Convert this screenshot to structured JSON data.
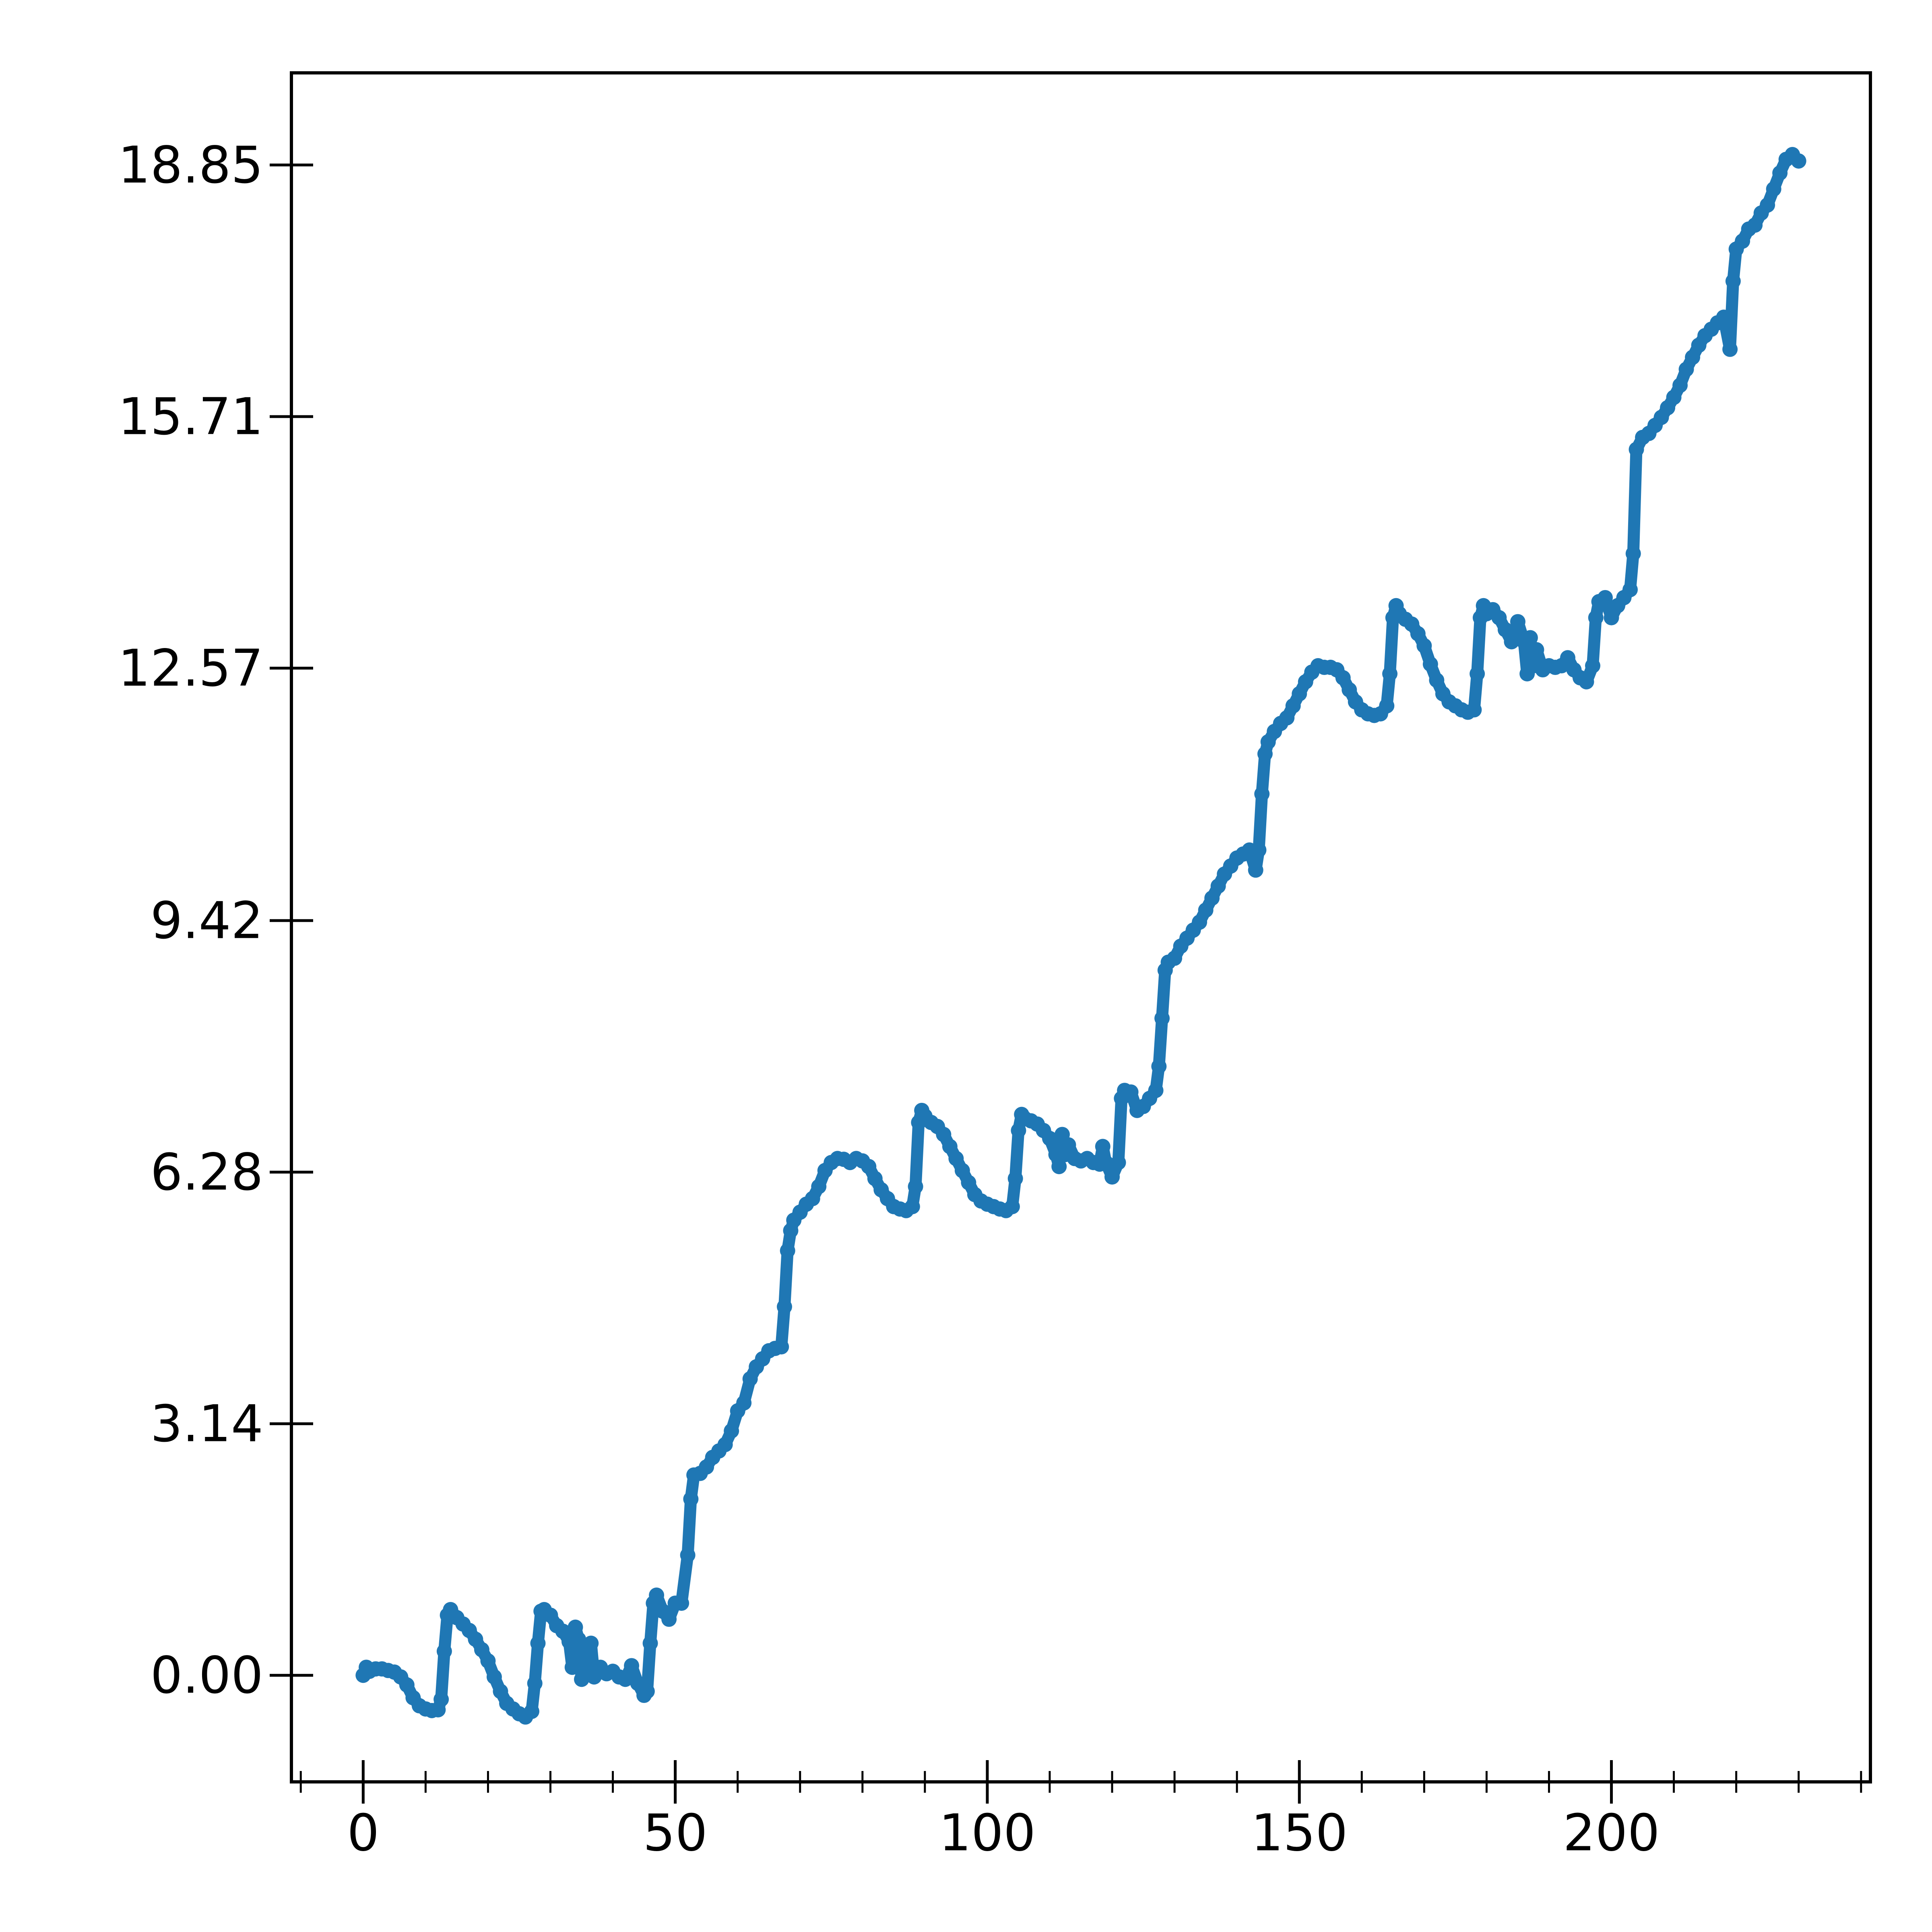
{
  "chart_data": {
    "type": "scatter",
    "title": "",
    "xlabel": "",
    "ylabel": "",
    "xlim": [
      -11.5,
      241.5
    ],
    "ylim": [
      -1.33,
      20.0
    ],
    "x_ticks": [
      0,
      50,
      100,
      150,
      200
    ],
    "x_tick_labels": [
      "0",
      "50",
      "100",
      "150",
      "200"
    ],
    "y_ticks": [
      0.0,
      3.14,
      6.28,
      9.42,
      12.57,
      15.71,
      18.85
    ],
    "y_tick_labels": [
      "0.00",
      "3.14",
      "6.28",
      "9.42",
      "12.57",
      "15.71",
      "18.85"
    ],
    "grid": false,
    "series": [
      {
        "color": "#1f77b4",
        "points": [
          [
            0,
            0.0
          ],
          [
            0.5,
            0.1
          ],
          [
            1,
            0.05
          ],
          [
            2,
            0.08
          ],
          [
            3,
            0.08
          ],
          [
            4,
            0.06
          ],
          [
            5,
            0.04
          ],
          [
            6,
            -0.02
          ],
          [
            7,
            -0.12
          ],
          [
            8,
            -0.28
          ],
          [
            9,
            -0.38
          ],
          [
            10,
            -0.42
          ],
          [
            11,
            -0.44
          ],
          [
            12,
            -0.43
          ],
          [
            12.5,
            -0.3
          ],
          [
            13,
            0.3
          ],
          [
            13.5,
            0.75
          ],
          [
            14,
            0.82
          ],
          [
            15,
            0.72
          ],
          [
            16,
            0.64
          ],
          [
            17,
            0.56
          ],
          [
            18,
            0.45
          ],
          [
            19,
            0.32
          ],
          [
            20,
            0.18
          ],
          [
            21,
            -0.02
          ],
          [
            22,
            -0.2
          ],
          [
            23,
            -0.35
          ],
          [
            24,
            -0.42
          ],
          [
            25,
            -0.48
          ],
          [
            26,
            -0.52
          ],
          [
            27,
            -0.45
          ],
          [
            27.5,
            -0.1
          ],
          [
            28,
            0.4
          ],
          [
            28.5,
            0.8
          ],
          [
            29,
            0.82
          ],
          [
            30,
            0.75
          ],
          [
            31,
            0.62
          ],
          [
            32,
            0.55
          ],
          [
            33,
            0.42
          ],
          [
            33.5,
            0.1
          ],
          [
            34,
            0.6
          ],
          [
            34.5,
            0.45
          ],
          [
            35,
            -0.05
          ],
          [
            35.5,
            0.25
          ],
          [
            36,
            0.05
          ],
          [
            36.5,
            0.4
          ],
          [
            37,
            -0.02
          ],
          [
            38,
            0.1
          ],
          [
            39,
            0.02
          ],
          [
            40,
            0.05
          ],
          [
            41,
            -0.02
          ],
          [
            42,
            -0.05
          ],
          [
            43,
            0.12
          ],
          [
            44,
            -0.1
          ],
          [
            45,
            -0.25
          ],
          [
            45.5,
            -0.2
          ],
          [
            46,
            0.4
          ],
          [
            46.5,
            0.9
          ],
          [
            47,
            1.0
          ],
          [
            48,
            0.8
          ],
          [
            49,
            0.7
          ],
          [
            50,
            0.9
          ],
          [
            51,
            0.9
          ],
          [
            52,
            1.5
          ],
          [
            52.5,
            2.2
          ],
          [
            53,
            2.5
          ],
          [
            54,
            2.52
          ],
          [
            55,
            2.6
          ],
          [
            56,
            2.72
          ],
          [
            57,
            2.8
          ],
          [
            58,
            2.88
          ],
          [
            59,
            3.05
          ],
          [
            60,
            3.3
          ],
          [
            61,
            3.4
          ],
          [
            62,
            3.7
          ],
          [
            63,
            3.85
          ],
          [
            64,
            3.95
          ],
          [
            65,
            4.05
          ],
          [
            66,
            4.08
          ],
          [
            67,
            4.1
          ],
          [
            67.5,
            4.6
          ],
          [
            68,
            5.3
          ],
          [
            68.5,
            5.55
          ],
          [
            69,
            5.68
          ],
          [
            70,
            5.78
          ],
          [
            71,
            5.88
          ],
          [
            72,
            5.95
          ],
          [
            73,
            6.1
          ],
          [
            74,
            6.3
          ],
          [
            75,
            6.4
          ],
          [
            76,
            6.45
          ],
          [
            77,
            6.44
          ],
          [
            78,
            6.4
          ],
          [
            79,
            6.45
          ],
          [
            80,
            6.42
          ],
          [
            81,
            6.35
          ],
          [
            82,
            6.2
          ],
          [
            83,
            6.06
          ],
          [
            84,
            5.95
          ],
          [
            85,
            5.85
          ],
          [
            86,
            5.82
          ],
          [
            87,
            5.8
          ],
          [
            88,
            5.85
          ],
          [
            88.5,
            6.1
          ],
          [
            89,
            6.9
          ],
          [
            89.5,
            7.05
          ],
          [
            90,
            6.98
          ],
          [
            91,
            6.9
          ],
          [
            92,
            6.85
          ],
          [
            93,
            6.75
          ],
          [
            94,
            6.6
          ],
          [
            95,
            6.45
          ],
          [
            96,
            6.3
          ],
          [
            97,
            6.15
          ],
          [
            98,
            6.0
          ],
          [
            99,
            5.92
          ],
          [
            100,
            5.88
          ],
          [
            101,
            5.85
          ],
          [
            102,
            5.82
          ],
          [
            103,
            5.8
          ],
          [
            104,
            5.85
          ],
          [
            104.5,
            6.2
          ],
          [
            105,
            6.8
          ],
          [
            105.5,
            7.0
          ],
          [
            106,
            6.95
          ],
          [
            107,
            6.92
          ],
          [
            108,
            6.88
          ],
          [
            109,
            6.8
          ],
          [
            110,
            6.7
          ],
          [
            111,
            6.5
          ],
          [
            111.5,
            6.35
          ],
          [
            112,
            6.75
          ],
          [
            112.5,
            6.5
          ],
          [
            113,
            6.62
          ],
          [
            114,
            6.45
          ],
          [
            115,
            6.42
          ],
          [
            116,
            6.45
          ],
          [
            117,
            6.4
          ],
          [
            118,
            6.38
          ],
          [
            118.5,
            6.6
          ],
          [
            119,
            6.4
          ],
          [
            120,
            6.22
          ],
          [
            121,
            6.4
          ],
          [
            121.5,
            7.2
          ],
          [
            122,
            7.3
          ],
          [
            123,
            7.28
          ],
          [
            124,
            7.05
          ],
          [
            125,
            7.1
          ],
          [
            126,
            7.2
          ],
          [
            127,
            7.3
          ],
          [
            127.5,
            7.6
          ],
          [
            128,
            8.2
          ],
          [
            128.5,
            8.8
          ],
          [
            129,
            8.9
          ],
          [
            130,
            8.95
          ],
          [
            131,
            9.1
          ],
          [
            132,
            9.2
          ],
          [
            133,
            9.3
          ],
          [
            134,
            9.4
          ],
          [
            135,
            9.55
          ],
          [
            136,
            9.7
          ],
          [
            137,
            9.85
          ],
          [
            138,
            10.0
          ],
          [
            139,
            10.1
          ],
          [
            140,
            10.2
          ],
          [
            141,
            10.25
          ],
          [
            142,
            10.3
          ],
          [
            143,
            10.05
          ],
          [
            143.5,
            10.3
          ],
          [
            144,
            11.0
          ],
          [
            144.5,
            11.5
          ],
          [
            145,
            11.65
          ],
          [
            146,
            11.78
          ],
          [
            147,
            11.88
          ],
          [
            148,
            11.95
          ],
          [
            149,
            12.1
          ],
          [
            150,
            12.25
          ],
          [
            151,
            12.4
          ],
          [
            152,
            12.52
          ],
          [
            153,
            12.6
          ],
          [
            154,
            12.58
          ],
          [
            155,
            12.58
          ],
          [
            156,
            12.55
          ],
          [
            157,
            12.45
          ],
          [
            158,
            12.3
          ],
          [
            159,
            12.15
          ],
          [
            160,
            12.05
          ],
          [
            161,
            12.0
          ],
          [
            162,
            11.98
          ],
          [
            163,
            12.0
          ],
          [
            164,
            12.1
          ],
          [
            164.5,
            12.5
          ],
          [
            165,
            13.2
          ],
          [
            165.5,
            13.35
          ],
          [
            166,
            13.25
          ],
          [
            167,
            13.18
          ],
          [
            168,
            13.12
          ],
          [
            169,
            13.0
          ],
          [
            170,
            12.85
          ],
          [
            171,
            12.62
          ],
          [
            172,
            12.42
          ],
          [
            173,
            12.25
          ],
          [
            174,
            12.15
          ],
          [
            175,
            12.1
          ],
          [
            176,
            12.05
          ],
          [
            177,
            12.02
          ],
          [
            178,
            12.05
          ],
          [
            178.5,
            12.5
          ],
          [
            179,
            13.2
          ],
          [
            179.5,
            13.35
          ],
          [
            180,
            13.25
          ],
          [
            181,
            13.3
          ],
          [
            182,
            13.2
          ],
          [
            183,
            13.05
          ],
          [
            184,
            12.9
          ],
          [
            185,
            13.15
          ],
          [
            186,
            12.9
          ],
          [
            186.5,
            12.5
          ],
          [
            187,
            12.95
          ],
          [
            187.5,
            12.6
          ],
          [
            188,
            12.8
          ],
          [
            189,
            12.55
          ],
          [
            190,
            12.6
          ],
          [
            191,
            12.58
          ],
          [
            192,
            12.6
          ],
          [
            193,
            12.7
          ],
          [
            194,
            12.55
          ],
          [
            195,
            12.45
          ],
          [
            196,
            12.4
          ],
          [
            197,
            12.6
          ],
          [
            197.5,
            13.2
          ],
          [
            198,
            13.4
          ],
          [
            199,
            13.45
          ],
          [
            200,
            13.2
          ],
          [
            201,
            13.35
          ],
          [
            202,
            13.45
          ],
          [
            203,
            13.55
          ],
          [
            203.5,
            14.0
          ],
          [
            204,
            15.3
          ],
          [
            205,
            15.45
          ],
          [
            206,
            15.5
          ],
          [
            207,
            15.6
          ],
          [
            208,
            15.7
          ],
          [
            209,
            15.82
          ],
          [
            210,
            15.95
          ],
          [
            211,
            16.1
          ],
          [
            212,
            16.3
          ],
          [
            213,
            16.45
          ],
          [
            214,
            16.6
          ],
          [
            215,
            16.72
          ],
          [
            216,
            16.8
          ],
          [
            217,
            16.88
          ],
          [
            218,
            16.95
          ],
          [
            219,
            16.55
          ],
          [
            219.5,
            17.4
          ],
          [
            220,
            17.8
          ],
          [
            221,
            17.9
          ],
          [
            222,
            18.05
          ],
          [
            223,
            18.1
          ],
          [
            224,
            18.25
          ],
          [
            225,
            18.35
          ],
          [
            226,
            18.55
          ],
          [
            227,
            18.75
          ],
          [
            228,
            18.92
          ],
          [
            229,
            18.98
          ],
          [
            230,
            18.9
          ]
        ]
      }
    ]
  }
}
